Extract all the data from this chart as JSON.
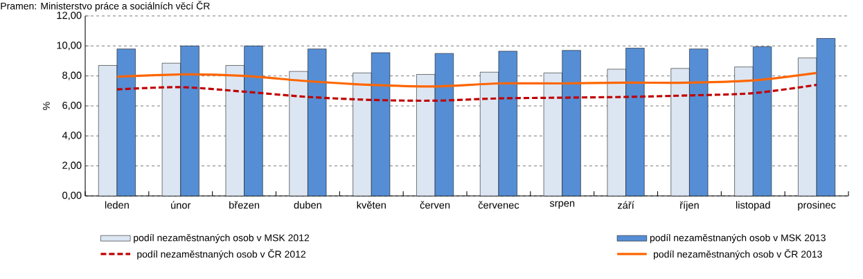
{
  "chart_data": {
    "type": "bar",
    "ylabel": "%",
    "annotations": [
      "Pramen: Ministerstvo práce a sociálních věcí ČR"
    ],
    "categories": [
      "leden",
      "únor",
      "březen",
      "duben",
      "květen",
      "červen",
      "červenec",
      "srpen",
      "září",
      "říjen",
      "listopad",
      "prosinec"
    ],
    "series": [
      {
        "name": "podíl nezaměstnaných osob v MSK 2012",
        "color": "#dce6f2",
        "values": [
          8.7,
          8.85,
          8.7,
          8.3,
          8.2,
          8.1,
          8.25,
          8.2,
          8.45,
          8.5,
          8.6,
          9.2
        ]
      },
      {
        "name": "podíl nezaměstnaných osob v MSK 2013",
        "color": "#558ed5",
        "values": [
          9.8,
          10.0,
          10.0,
          9.8,
          9.55,
          9.5,
          9.65,
          9.7,
          9.85,
          9.8,
          9.95,
          10.5
        ]
      },
      {
        "name": "podíl nezaměstnaných osob v ČR 2012",
        "type": "line",
        "line_style": "dashed",
        "color": "#c00000",
        "values": [
          7.1,
          7.25,
          6.95,
          6.6,
          6.4,
          6.35,
          6.5,
          6.55,
          6.6,
          6.7,
          6.85,
          7.4
        ]
      },
      {
        "name": "podíl nezaměstnaných osob v ČR 2013",
        "type": "line",
        "line_style": "solid",
        "color": "#ff6600",
        "values": [
          7.95,
          8.1,
          8.0,
          7.65,
          7.4,
          7.3,
          7.5,
          7.5,
          7.55,
          7.55,
          7.7,
          8.2
        ]
      }
    ],
    "ylim": [
      0,
      12
    ],
    "yticks": [
      {
        "value": 0,
        "label": "0,00"
      },
      {
        "value": 2,
        "label": "2,00"
      },
      {
        "value": 4,
        "label": "4,00"
      },
      {
        "value": 6,
        "label": "6,00"
      },
      {
        "value": 8,
        "label": "8,00"
      },
      {
        "value": 10,
        "label": "10,00"
      },
      {
        "value": 12,
        "label": "12,00"
      }
    ],
    "grid": "y",
    "legend": "bottom"
  }
}
